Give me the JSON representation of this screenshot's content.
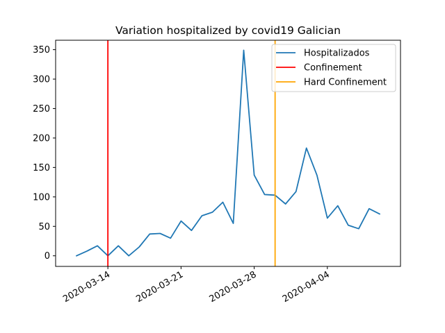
{
  "chart_data": {
    "type": "line",
    "title": "Variation hospitalized by covid19 Galician",
    "xlabel": "",
    "ylabel": "",
    "x_tick_labels": [
      "2020-03-14",
      "2020-03-21",
      "2020-03-28",
      "2020-04-04"
    ],
    "y_ticks": [
      0,
      50,
      100,
      150,
      200,
      250,
      300,
      350
    ],
    "ylim": [
      -18,
      366
    ],
    "xlim": [
      "2020-03-09",
      "2020-04-11"
    ],
    "grid": false,
    "legend_position": "top-right",
    "series": [
      {
        "name": "Hospitalizados",
        "color": "#1f77b4",
        "x": [
          "2020-03-11",
          "2020-03-12",
          "2020-03-13",
          "2020-03-14",
          "2020-03-15",
          "2020-03-16",
          "2020-03-17",
          "2020-03-18",
          "2020-03-19",
          "2020-03-20",
          "2020-03-21",
          "2020-03-22",
          "2020-03-23",
          "2020-03-24",
          "2020-03-25",
          "2020-03-26",
          "2020-03-27",
          "2020-03-28",
          "2020-03-29",
          "2020-03-30",
          "2020-03-31",
          "2020-04-01",
          "2020-04-02",
          "2020-04-03",
          "2020-04-04",
          "2020-04-05",
          "2020-04-06",
          "2020-04-07",
          "2020-04-08",
          "2020-04-09"
        ],
        "values": [
          0,
          8,
          17,
          0,
          17,
          0,
          15,
          37,
          38,
          30,
          59,
          43,
          68,
          74,
          91,
          55,
          349,
          137,
          104,
          103,
          88,
          109,
          183,
          137,
          64,
          85,
          52,
          46,
          80,
          71
        ]
      }
    ],
    "vertical_lines": [
      {
        "name": "Confinement",
        "date": "2020-03-14",
        "color": "#ff0000"
      },
      {
        "name": "Hard Confinement",
        "date": "2020-03-30",
        "color": "#ffa500"
      }
    ]
  }
}
